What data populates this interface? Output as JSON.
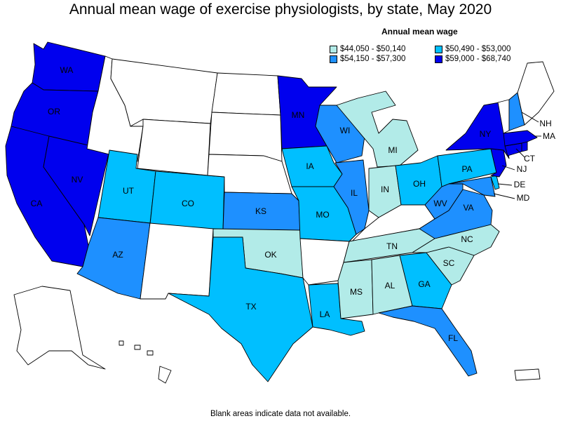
{
  "title": "Annual mean wage of exercise physiologists, by state, May 2020",
  "legend": {
    "title": "Annual mean wage",
    "bins": [
      {
        "label": "$44,050 - $50,140",
        "color": "#b2ebe8"
      },
      {
        "label": "$50,490 - $53,000",
        "color": "#00bfff"
      },
      {
        "label": "$54,150 - $57,300",
        "color": "#1e90ff"
      },
      {
        "label": "$59,000 - $68,740",
        "color": "#0000ee"
      }
    ]
  },
  "footnote": "Blank areas indicate data not available.",
  "no_data_color": "#ffffff",
  "states": {
    "WA": {
      "label": "WA",
      "bin": 3
    },
    "OR": {
      "label": "OR",
      "bin": 3
    },
    "CA": {
      "label": "CA",
      "bin": 3
    },
    "NV": {
      "label": "NV",
      "bin": 3
    },
    "MN": {
      "label": "MN",
      "bin": 3
    },
    "NY": {
      "label": "NY",
      "bin": 3
    },
    "MA": {
      "label": "MA",
      "bin": 3
    },
    "NJ": {
      "label": "NJ",
      "bin": 3
    },
    "CT": {
      "label": "CT",
      "bin": 3
    },
    "RI": {
      "label": "",
      "bin": 3
    },
    "WI": {
      "label": "WI",
      "bin": 2
    },
    "IL": {
      "label": "IL",
      "bin": 2
    },
    "KS": {
      "label": "KS",
      "bin": 2
    },
    "AZ": {
      "label": "AZ",
      "bin": 2
    },
    "FL": {
      "label": "FL",
      "bin": 2
    },
    "VA": {
      "label": "VA",
      "bin": 2
    },
    "WV": {
      "label": "WV",
      "bin": 2
    },
    "NH": {
      "label": "NH",
      "bin": 2
    },
    "MD": {
      "label": "MD",
      "bin": 2
    },
    "UT": {
      "label": "UT",
      "bin": 1
    },
    "CO": {
      "label": "CO",
      "bin": 1
    },
    "TX": {
      "label": "TX",
      "bin": 1
    },
    "IA": {
      "label": "IA",
      "bin": 1
    },
    "MO": {
      "label": "MO",
      "bin": 1
    },
    "OH": {
      "label": "OH",
      "bin": 1
    },
    "PA": {
      "label": "PA",
      "bin": 1
    },
    "GA": {
      "label": "GA",
      "bin": 1
    },
    "LA": {
      "label": "LA",
      "bin": 1
    },
    "DE": {
      "label": "DE",
      "bin": 1
    },
    "MI": {
      "label": "MI",
      "bin": 0
    },
    "IN": {
      "label": "IN",
      "bin": 0
    },
    "OK": {
      "label": "OK",
      "bin": 0
    },
    "TN": {
      "label": "TN",
      "bin": 0
    },
    "NC": {
      "label": "NC",
      "bin": 0
    },
    "SC": {
      "label": "SC",
      "bin": 0
    },
    "MS": {
      "label": "MS",
      "bin": 0
    },
    "AL": {
      "label": "AL",
      "bin": 0
    },
    "ID": {
      "label": "",
      "bin": null
    },
    "MT": {
      "label": "",
      "bin": null
    },
    "WY": {
      "label": "",
      "bin": null
    },
    "ND": {
      "label": "",
      "bin": null
    },
    "SD": {
      "label": "",
      "bin": null
    },
    "NE": {
      "label": "",
      "bin": null
    },
    "NM": {
      "label": "",
      "bin": null
    },
    "AR": {
      "label": "",
      "bin": null
    },
    "KY": {
      "label": "",
      "bin": null
    },
    "VT": {
      "label": "",
      "bin": null
    },
    "ME": {
      "label": "",
      "bin": null
    },
    "AK": {
      "label": "",
      "bin": null
    },
    "HI": {
      "label": "",
      "bin": null
    },
    "PR": {
      "label": "",
      "bin": null
    }
  }
}
